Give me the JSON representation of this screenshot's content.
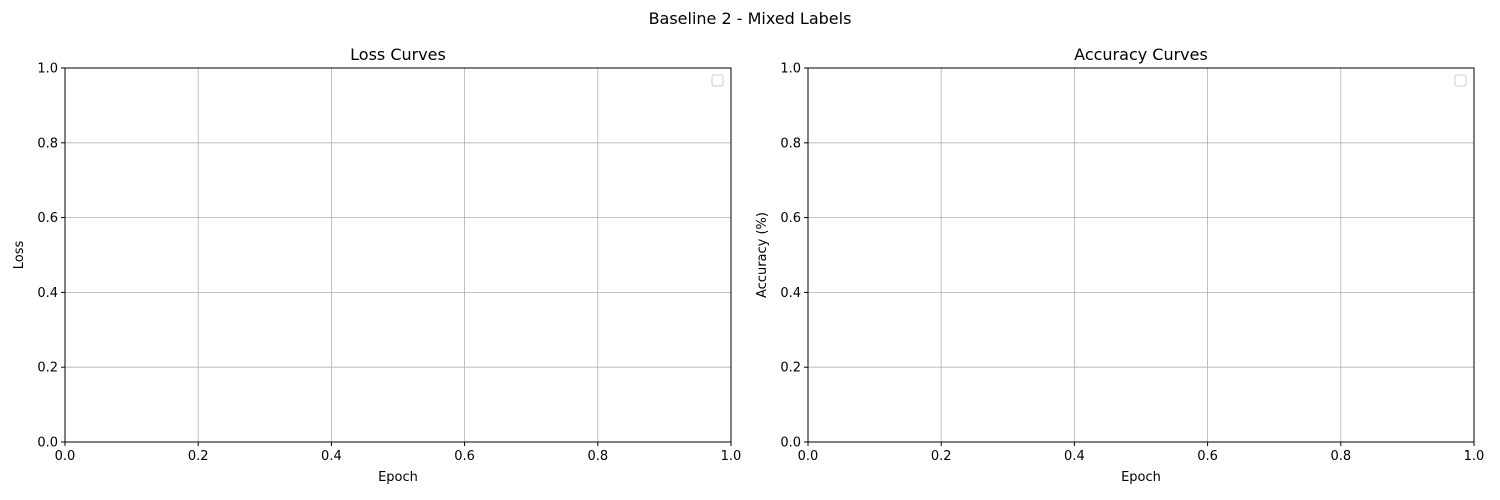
{
  "figure": {
    "suptitle": "Baseline 2 - Mixed Labels"
  },
  "colors": {
    "grid": "#b0b0b0",
    "axes": "#000000",
    "background": "#ffffff",
    "legend_edge": "#cccccc"
  },
  "chart_data": [
    {
      "type": "line",
      "title": "Loss Curves",
      "xlabel": "Epoch",
      "ylabel": "Loss",
      "xlim": [
        0,
        1
      ],
      "ylim": [
        0,
        1
      ],
      "xticks": [
        "0.0",
        "0.2",
        "0.4",
        "0.6",
        "0.8",
        "1.0"
      ],
      "yticks": [
        "0.0",
        "0.2",
        "0.4",
        "0.6",
        "0.8",
        "1.0"
      ],
      "grid": true,
      "legend": "top-right",
      "legend_entries": [],
      "series": []
    },
    {
      "type": "line",
      "title": "Accuracy Curves",
      "xlabel": "Epoch",
      "ylabel": "Accuracy (%)",
      "xlim": [
        0,
        1
      ],
      "ylim": [
        0,
        1
      ],
      "xticks": [
        "0.0",
        "0.2",
        "0.4",
        "0.6",
        "0.8",
        "1.0"
      ],
      "yticks": [
        "0.0",
        "0.2",
        "0.4",
        "0.6",
        "0.8",
        "1.0"
      ],
      "grid": true,
      "legend": "top-right",
      "legend_entries": [],
      "series": []
    }
  ]
}
